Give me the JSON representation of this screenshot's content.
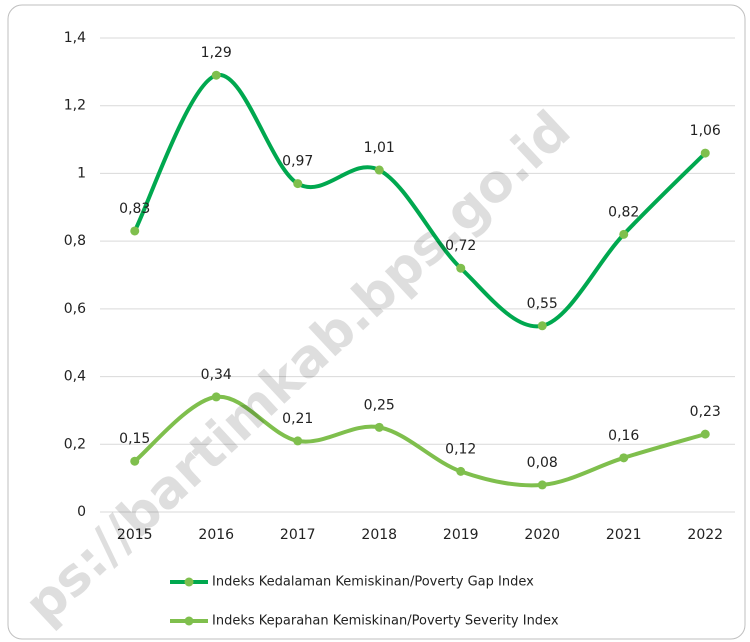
{
  "chart_data": {
    "type": "line",
    "categories": [
      "2015",
      "2016",
      "2017",
      "2018",
      "2019",
      "2020",
      "2021",
      "2022"
    ],
    "series": [
      {
        "name": "Indeks Kedalaman Kemiskinan/Poverty Gap Index",
        "color": "#00a84f",
        "values": [
          0.83,
          1.29,
          0.97,
          1.01,
          0.72,
          0.55,
          0.82,
          1.06
        ],
        "value_labels": [
          "0,83",
          "1,29",
          "0,97",
          "1,01",
          "0,72",
          "0,55",
          "0,82",
          "1,06"
        ]
      },
      {
        "name": "Indeks Keparahan Kemiskinan/Poverty Severity Index",
        "color": "#7fbf4d",
        "values": [
          0.15,
          0.34,
          0.21,
          0.25,
          0.12,
          0.08,
          0.16,
          0.23
        ],
        "value_labels": [
          "0,15",
          "0,34",
          "0,21",
          "0,25",
          "0,12",
          "0,08",
          "0,16",
          "0,23"
        ]
      }
    ],
    "ylim": [
      0,
      1.4
    ],
    "yticks": [
      0,
      {
        "value": 0.2,
        "label": "0,2"
      },
      {
        "value": 0.4,
        "label": "0,4"
      },
      {
        "value": 0.6,
        "label": "0,6"
      },
      {
        "value": 0.8,
        "label": "0,8"
      },
      1,
      {
        "value": 1.2,
        "label": "1,2"
      },
      {
        "value": 1.4,
        "label": "1,4"
      }
    ],
    "grid": true,
    "smooth": true,
    "legend": "bottom",
    "watermark": "ps://bartimkab.bps.go.id"
  }
}
